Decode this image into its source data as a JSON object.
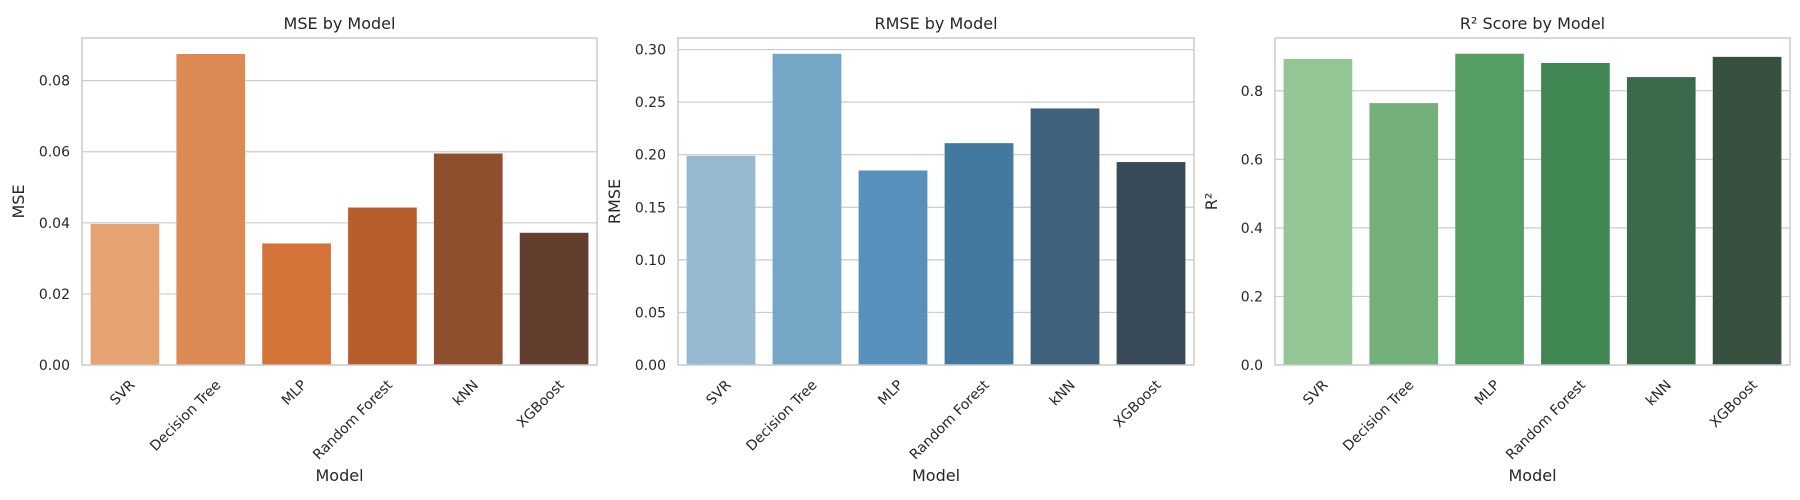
{
  "chart_data": [
    {
      "type": "bar",
      "title": "MSE by Model",
      "xlabel": "Model",
      "ylabel": "MSE",
      "categories": [
        "SVR",
        "Decision Tree",
        "MLP",
        "Random Forest",
        "kNN",
        "XGBoost"
      ],
      "values": [
        0.0397,
        0.0875,
        0.0342,
        0.0443,
        0.0595,
        0.0372
      ],
      "ylim": [
        0,
        0.092
      ],
      "yticks": [
        0.0,
        0.02,
        0.04,
        0.06,
        0.08
      ],
      "ytick_labels": [
        "0.00",
        "0.02",
        "0.04",
        "0.06",
        "0.08"
      ],
      "colors": [
        "#e6a371",
        "#dc8a53",
        "#d47337",
        "#b85d2c",
        "#8d4f2d",
        "#613e2d"
      ],
      "grid": true,
      "legend": "none"
    },
    {
      "type": "bar",
      "title": "RMSE by Model",
      "xlabel": "Model",
      "ylabel": "RMSE",
      "categories": [
        "SVR",
        "Decision Tree",
        "MLP",
        "Random Forest",
        "kNN",
        "XGBoost"
      ],
      "values": [
        0.199,
        0.296,
        0.185,
        0.211,
        0.244,
        0.193
      ],
      "ylim": [
        0,
        0.311
      ],
      "yticks": [
        0.0,
        0.05,
        0.1,
        0.15,
        0.2,
        0.25,
        0.3
      ],
      "ytick_labels": [
        "0.00",
        "0.05",
        "0.10",
        "0.15",
        "0.20",
        "0.25",
        "0.30"
      ],
      "colors": [
        "#97b9d2",
        "#76a6c6",
        "#5990bb",
        "#44799f",
        "#3f617c",
        "#384958"
      ],
      "grid": true,
      "legend": "none"
    },
    {
      "type": "bar",
      "title": "R² Score by Model",
      "xlabel": "Model",
      "ylabel": "R²",
      "categories": [
        "SVR",
        "Decision Tree",
        "MLP",
        "Random Forest",
        "kNN",
        "XGBoost"
      ],
      "values": [
        0.893,
        0.764,
        0.908,
        0.881,
        0.84,
        0.899
      ],
      "ylim": [
        0,
        0.954
      ],
      "yticks": [
        0.0,
        0.2,
        0.4,
        0.6,
        0.8
      ],
      "ytick_labels": [
        "0.0",
        "0.2",
        "0.4",
        "0.6",
        "0.8"
      ],
      "colors": [
        "#93c595",
        "#73b07a",
        "#559f64",
        "#418753",
        "#3a6a4a",
        "#38503f"
      ],
      "grid": true,
      "legend": "none"
    }
  ]
}
